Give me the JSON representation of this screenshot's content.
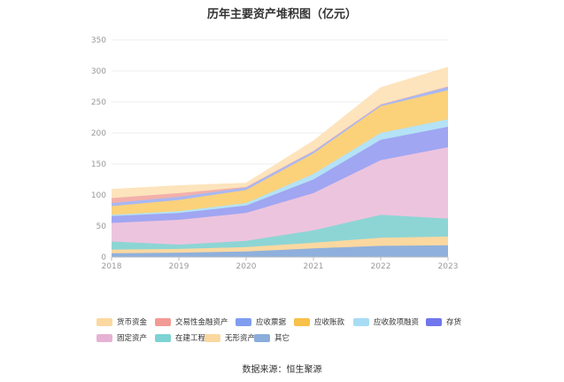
{
  "chart_data": {
    "type": "area",
    "stacked": true,
    "title": "历年主要资产堆积图（亿元）",
    "x": [
      "2018",
      "2019",
      "2020",
      "2021",
      "2022",
      "2023"
    ],
    "ylim": [
      0,
      350
    ],
    "yticks": [
      0,
      50,
      100,
      150,
      200,
      250,
      300,
      350
    ],
    "grid": true,
    "legend_position": "bottom",
    "stack_order_bottom_to_top": [
      "其它",
      "无形资产",
      "在建工程",
      "固定资产",
      "存货",
      "应收款项融资",
      "应收账款",
      "应收票据",
      "交易性金融资产",
      "货币资金"
    ],
    "series": [
      {
        "name": "其它",
        "color": "#8fb0dc",
        "values": [
          6,
          7,
          9,
          14,
          18,
          19
        ]
      },
      {
        "name": "无形资产",
        "color": "#fbd8a0",
        "values": [
          6,
          6,
          7,
          9,
          13,
          14
        ]
      },
      {
        "name": "在建工程",
        "color": "#8dd5d5",
        "values": [
          13,
          7,
          10,
          20,
          37,
          29
        ]
      },
      {
        "name": "固定资产",
        "color": "#edc4de",
        "values": [
          30,
          40,
          45,
          60,
          88,
          115
        ]
      },
      {
        "name": "存货",
        "color": "#a0a6f2",
        "values": [
          11,
          11,
          12,
          22,
          33,
          33
        ]
      },
      {
        "name": "应收款项融资",
        "color": "#b4e2f6",
        "values": [
          2,
          3,
          4,
          9,
          11,
          12
        ]
      },
      {
        "name": "应收账款",
        "color": "#fbd27a",
        "values": [
          14,
          18,
          21,
          33,
          43,
          47
        ]
      },
      {
        "name": "应收票据",
        "color": "#a8b8f3",
        "values": [
          5,
          5,
          4,
          4,
          3,
          6
        ]
      },
      {
        "name": "交易性金融资产",
        "color": "#f3b0ab",
        "values": [
          8,
          6,
          1,
          0,
          0,
          0
        ]
      },
      {
        "name": "货币资金",
        "color": "#fde4bc",
        "values": [
          14,
          12,
          6,
          16,
          27,
          31
        ]
      }
    ]
  },
  "legend": {
    "items": [
      {
        "label": "货币资金",
        "color": "#fbd8a0"
      },
      {
        "label": "交易性金融资产",
        "color": "#f29b94"
      },
      {
        "label": "应收票据",
        "color": "#7f9df0"
      },
      {
        "label": "应收账款",
        "color": "#f8c14a"
      },
      {
        "label": "应收款项融资",
        "color": "#a8dcf5"
      },
      {
        "label": "存货",
        "color": "#7176ee"
      },
      {
        "label": "固定资产",
        "color": "#e6b2d4"
      },
      {
        "label": "在建工程",
        "color": "#7dd3d3"
      },
      {
        "label": "无形资产",
        "color": "#fbd8a0"
      },
      {
        "label": "其它",
        "color": "#8aaddb"
      }
    ]
  },
  "source": "数据来源：恒生聚源"
}
